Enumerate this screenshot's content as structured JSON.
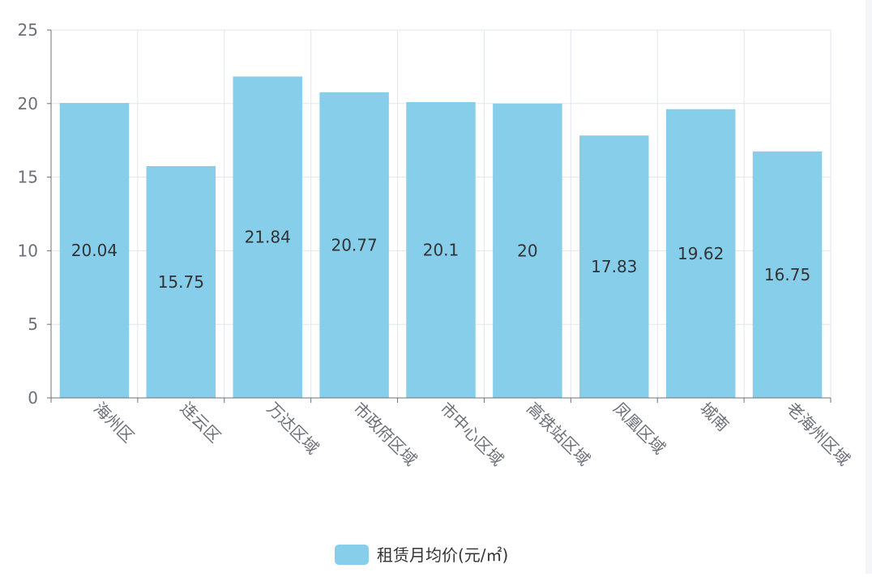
{
  "chart_data": {
    "type": "bar",
    "categories": [
      "海州区",
      "连云区",
      "万达区域",
      "市政府区域",
      "市中心区域",
      "高铁站区域",
      "凤凰区域",
      "城南",
      "老海州区域"
    ],
    "series": [
      {
        "name": "租赁月均价(元/㎡)",
        "values": [
          20.04,
          15.75,
          21.84,
          20.77,
          20.1,
          20,
          17.83,
          19.62,
          16.75
        ],
        "color": "#87ceeb"
      }
    ],
    "yticks": [
      0,
      5,
      10,
      15,
      20,
      25
    ],
    "ylim": [
      0,
      25
    ],
    "grid": true,
    "legend_position": "bottom-center",
    "data_labels": true,
    "x_label_rotation": "diagonal",
    "colors": {
      "bar": "#87ceeb",
      "axis": "#6e7079",
      "grid": "#e0e6f1",
      "label_text": "#333333",
      "tick_text": "#6e7079"
    }
  }
}
